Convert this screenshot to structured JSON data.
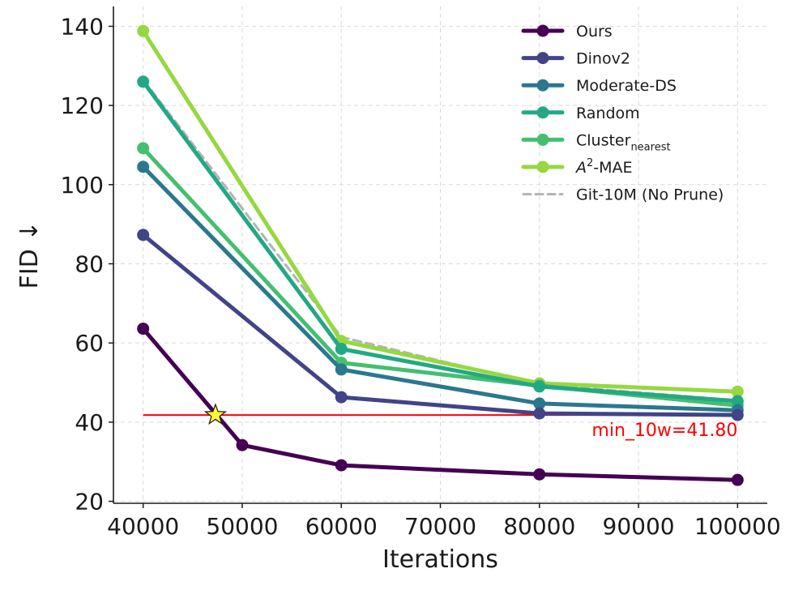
{
  "chart_data": {
    "type": "line",
    "title": "",
    "xlabel": "Iterations",
    "ylabel": "FID ↓",
    "xlim": [
      37000,
      103000
    ],
    "ylim": [
      19.5,
      145
    ],
    "xticks": [
      40000,
      50000,
      60000,
      70000,
      80000,
      90000,
      100000
    ],
    "yticks": [
      20,
      40,
      60,
      80,
      100,
      120,
      140
    ],
    "grid": true,
    "legend_position": "top-right",
    "series": [
      {
        "name": "Ours",
        "legend_main": "Ours",
        "legend_sub": "",
        "legend_sup": "",
        "color": "#440154",
        "dashed": false,
        "markers": true,
        "points": [
          [
            40000,
            63.6
          ],
          [
            50000,
            34.2
          ],
          [
            60000,
            29.1
          ],
          [
            80000,
            26.8
          ],
          [
            100000,
            25.4
          ]
        ]
      },
      {
        "name": "Dinov2",
        "legend_main": "Dinov2",
        "legend_sub": "",
        "legend_sup": "",
        "color": "#414487",
        "dashed": false,
        "markers": true,
        "points": [
          [
            40000,
            87.3
          ],
          [
            60000,
            46.3
          ],
          [
            80000,
            42.2
          ],
          [
            100000,
            41.8
          ]
        ]
      },
      {
        "name": "Moderate-DS",
        "legend_main": "Moderate-DS",
        "legend_sub": "",
        "legend_sup": "",
        "color": "#2a788e",
        "dashed": false,
        "markers": true,
        "points": [
          [
            40000,
            104.5
          ],
          [
            60000,
            53.3
          ],
          [
            80000,
            44.7
          ],
          [
            100000,
            43.0
          ]
        ]
      },
      {
        "name": "Random",
        "legend_main": "Random",
        "legend_sub": "",
        "legend_sup": "",
        "color": "#22a884",
        "dashed": false,
        "markers": true,
        "points": [
          [
            40000,
            126.0
          ],
          [
            60000,
            58.5
          ],
          [
            80000,
            49.0
          ],
          [
            100000,
            45.3
          ]
        ]
      },
      {
        "name": "Cluster_nearest",
        "legend_main": "Cluster",
        "legend_sub": "nearest",
        "legend_sup": "",
        "color": "#44bf70",
        "dashed": false,
        "markers": true,
        "points": [
          [
            40000,
            109.2
          ],
          [
            60000,
            55.0
          ],
          [
            80000,
            49.2
          ],
          [
            100000,
            44.2
          ]
        ]
      },
      {
        "name": "A^2-MAE",
        "legend_main": "A",
        "legend_sub": "",
        "legend_sup": "2",
        "legend_tail": "-MAE",
        "color": "#95d840",
        "dashed": false,
        "markers": true,
        "points": [
          [
            40000,
            138.8
          ],
          [
            60000,
            60.5
          ],
          [
            80000,
            49.8
          ],
          [
            100000,
            47.7
          ]
        ]
      },
      {
        "name": "Git-10M (No Prune)",
        "legend_main": "Git-10M (No Prune)",
        "legend_sub": "",
        "legend_sup": "",
        "color": "#b3b3b3",
        "dashed": true,
        "markers": false,
        "points": [
          [
            40000,
            126.5
          ],
          [
            60000,
            61.5
          ],
          [
            80000,
            49.5
          ],
          [
            100000,
            45.5
          ]
        ]
      }
    ],
    "reference_line": {
      "y": 41.8,
      "x_start": 40000,
      "x_end": 100000,
      "color": "#ff0000",
      "label": "min_10w=41.80"
    },
    "star_marker": {
      "x": 47300,
      "y": 41.8,
      "color": "#ffff33"
    }
  }
}
